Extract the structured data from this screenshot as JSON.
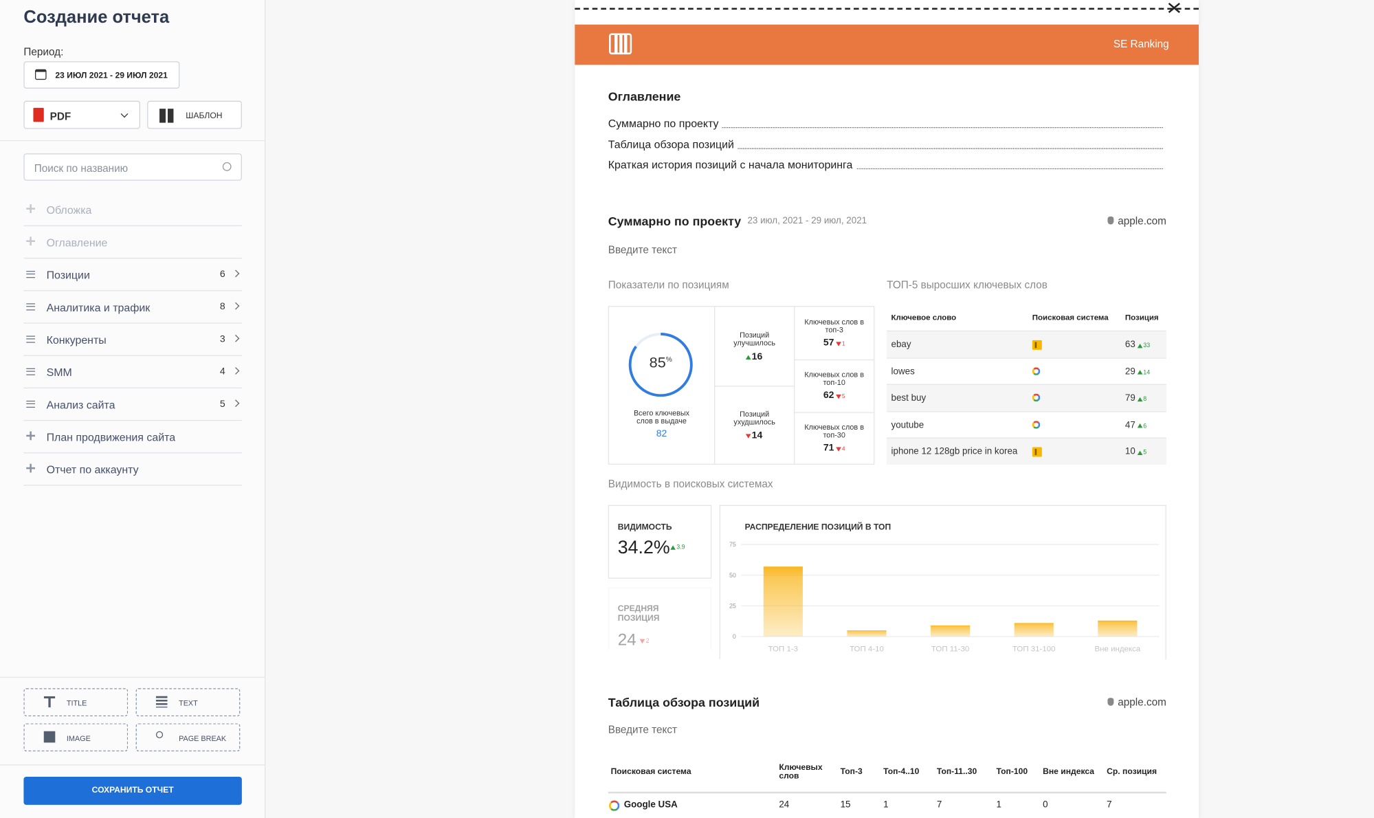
{
  "sidebar": {
    "title": "Создание отчета",
    "period_label": "Период:",
    "period": "23 ИЮЛ 2021 - 29 ИЮЛ 2021",
    "format": "PDF",
    "template": "ШАБЛОН",
    "search_placeholder": "Поиск по названию",
    "sections": [
      {
        "label": "Обложка"
      },
      {
        "label": "Оглавление"
      },
      {
        "label": "Позиции",
        "count": 6
      },
      {
        "label": "Аналитика и трафик",
        "count": 8
      },
      {
        "label": "Конкуренты",
        "count": 3
      },
      {
        "label": "SMM",
        "count": 4
      },
      {
        "label": "Анализ сайта",
        "count": 5
      },
      {
        "label": "План продвижения сайта"
      },
      {
        "label": "Отчет по аккаунту"
      }
    ],
    "tools": [
      "TITLE",
      "TEXT",
      "IMAGE",
      "PAGE BREAK"
    ],
    "save": "СОХРАНИТЬ ОТЧЕТ"
  },
  "report": {
    "brand": "SE Ranking",
    "toc": {
      "title": "Оглавление",
      "items": [
        "Суммарно по проекту",
        "Таблица обзора позиций",
        "Краткая история позиций с начала мониторинга"
      ]
    },
    "summary": {
      "title": "Суммарно по проекту",
      "period": "23 июл, 2021 - 29 июл, 2021",
      "domain": "apple.com",
      "placeholder": "Введите текст",
      "positions_title": "Показатели по позициям",
      "top5_title": "ТОП-5 выросших ключевых слов",
      "visibility_title": "Видимость в поисковых системах"
    },
    "metrics": {
      "donut": {
        "value": 85,
        "unit": "%",
        "label": "Всего ключевых слов в выдаче",
        "total": 82
      },
      "improved": {
        "label": "Позиций улучшилось",
        "value": 16
      },
      "worsened": {
        "label": "Позиций ухудшилось",
        "value": 14
      },
      "tops": [
        {
          "label": "Ключевых слов в топ-3",
          "value": 57,
          "change": 1
        },
        {
          "label": "Ключевых слов в топ-10",
          "value": 62,
          "change": 5
        },
        {
          "label": "Ключевых слов в топ-30",
          "value": 71,
          "change": 4
        }
      ]
    },
    "top5": {
      "headers": [
        "Ключевое слово",
        "Поисковая система",
        "Позиция"
      ],
      "rows": [
        [
          "ebay",
          63,
          33
        ],
        [
          "lowes",
          29,
          14
        ],
        [
          "best buy",
          79,
          8
        ],
        [
          "youtube",
          47,
          6
        ],
        [
          "iphone 12 128gb price in korea",
          10,
          5
        ]
      ]
    },
    "visibility": {
      "label": "ВИДИМОСТЬ",
      "value": "34.2%",
      "change": 3.9
    },
    "avg_position": {
      "label": "СРЕДНЯЯ ПОЗИЦИЯ",
      "value": 24,
      "change": 2
    },
    "overview": {
      "title": "Таблица обзора позиций",
      "domain": "apple.com",
      "placeholder": "Введите текст",
      "headers": [
        "Поисковая система",
        "Ключевых слов",
        "Топ-3",
        "Топ-4..10",
        "Топ-11..30",
        "Топ-100",
        "Вне индекса",
        "Ср. позиция"
      ],
      "rows": [
        [
          "Google USA",
          24,
          15,
          1,
          7,
          1,
          0,
          7
        ]
      ]
    }
  },
  "chart_data": {
    "type": "bar",
    "title": "РАСПРЕДЕЛЕНИЕ ПОЗИЦИЙ В ТОП",
    "categories": [
      "ТОП 1-3",
      "ТОП 4-10",
      "ТОП 11-30",
      "ТОП 31-100",
      "Вне индекса"
    ],
    "values": [
      57,
      5,
      9,
      11,
      13
    ],
    "color": "#f9b61e",
    "ylim": [
      0,
      75
    ],
    "yticks": [
      0,
      25,
      50,
      75
    ],
    "grid": true
  }
}
